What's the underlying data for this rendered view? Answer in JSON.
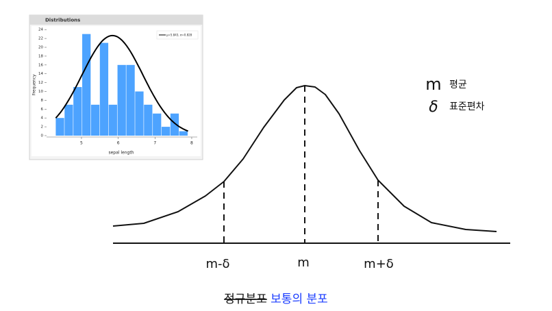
{
  "chart_data": {
    "type": "histogram",
    "title": "Distributions",
    "xlabel": "sepal length",
    "ylabel": "Frequency",
    "bins": [
      4.3,
      4.54,
      4.78,
      5.02,
      5.26,
      5.5,
      5.74,
      5.98,
      6.22,
      6.46,
      6.7,
      6.94,
      7.18,
      7.42,
      7.66,
      7.9
    ],
    "counts": [
      4,
      7,
      11,
      23,
      7,
      21,
      7,
      16,
      16,
      10,
      7,
      5,
      2,
      5,
      1
    ],
    "color": "#4da3ff",
    "xlim": [
      4.05,
      8.15
    ],
    "ylim": [
      0,
      24.5
    ],
    "xticks": [
      5,
      6,
      7,
      8
    ],
    "yticks": [
      0,
      2,
      4,
      6,
      8,
      10,
      12,
      14,
      16,
      18,
      20,
      22,
      24
    ],
    "legend": "μ=5.843, σ=0.828",
    "curve": {
      "mu": 5.843,
      "sigma": 0.828
    }
  },
  "diagram": {
    "legend": [
      {
        "symbol": "m",
        "label": "평균"
      },
      {
        "symbol": "δ",
        "label": "표준편차"
      }
    ],
    "markers": [
      "m-δ",
      "m",
      "m+δ"
    ],
    "caption": {
      "struck": "정규분포",
      "text": "보통의 분포"
    }
  }
}
